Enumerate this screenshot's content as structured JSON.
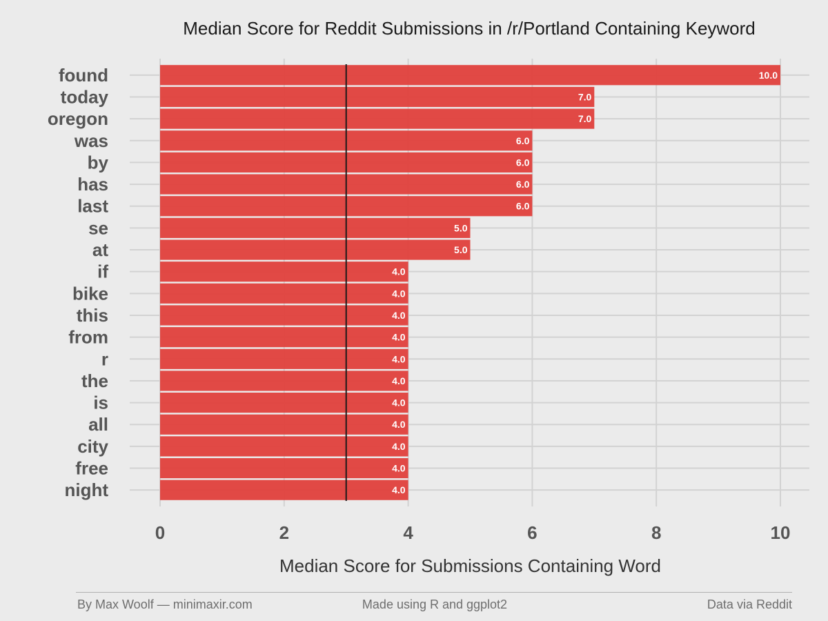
{
  "chart_data": {
    "type": "bar",
    "orientation": "horizontal",
    "title": "Median Score for Reddit Submissions in /r/Portland Containing Keyword",
    "xlabel": "Median Score for Submissions Containing Word",
    "ylabel": "",
    "categories": [
      "found",
      "today",
      "oregon",
      "was",
      "by",
      "has",
      "last",
      "se",
      "at",
      "if",
      "bike",
      "this",
      "from",
      "r",
      "the",
      "is",
      "all",
      "city",
      "free",
      "night"
    ],
    "values": [
      10,
      7,
      7,
      6,
      6,
      6,
      6,
      5,
      5,
      4,
      4,
      4,
      4,
      4,
      4,
      4,
      4,
      4,
      4,
      4
    ],
    "data_labels": [
      "10.0",
      "7.0",
      "7.0",
      "6.0",
      "6.0",
      "6.0",
      "6.0",
      "5.0",
      "5.0",
      "4.0",
      "4.0",
      "4.0",
      "4.0",
      "4.0",
      "4.0",
      "4.0",
      "4.0",
      "4.0",
      "4.0",
      "4.0"
    ],
    "xlim": [
      0,
      10
    ],
    "xticks": [
      0,
      2,
      4,
      6,
      8,
      10
    ],
    "reference_line": 3,
    "grid": true,
    "bar_color": "#e0403c",
    "background_color": "#ebebeb",
    "grid_color": "#d2d2d2"
  },
  "footer": {
    "left": "By Max Woolf — minimaxir.com",
    "center": "Made using R and ggplot2",
    "right": "Data via Reddit"
  }
}
